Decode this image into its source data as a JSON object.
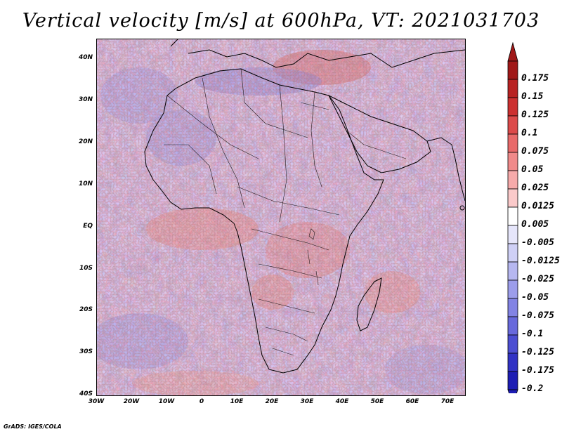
{
  "title": "Vertical velocity [m/s] at 600hPa, VT: 2021031703",
  "credit": "GrADS: IGES/COLA",
  "map": {
    "projection": "lat-lon",
    "lon_range": [
      -30,
      75
    ],
    "lat_range": [
      -40,
      45
    ],
    "lat_ticks": [
      "40N",
      "30N",
      "20N",
      "10N",
      "EQ",
      "10S",
      "20S",
      "30S",
      "40S"
    ],
    "lon_ticks": [
      "30W",
      "20W",
      "10W",
      "0",
      "10E",
      "20E",
      "30E",
      "40E",
      "50E",
      "60E",
      "70E"
    ],
    "field": "vertical velocity",
    "units": "m/s",
    "level": "600hPa"
  },
  "colorbar": {
    "labels": [
      "0.175",
      "0.15",
      "0.125",
      "0.1",
      "0.075",
      "0.05",
      "0.025",
      "0.0125",
      "0.005",
      "-0.005",
      "-0.0125",
      "-0.025",
      "-0.05",
      "-0.075",
      "-0.1",
      "-0.125",
      "-0.175",
      "-0.2"
    ],
    "colors": [
      "#a01818",
      "#b82222",
      "#cc3030",
      "#dc4a4a",
      "#e86a6a",
      "#f08a8a",
      "#f6aaaa",
      "#fbcaca",
      "#ffffff",
      "#e6e6fb",
      "#cfd0f6",
      "#b6b7f0",
      "#9c9deb",
      "#8283e4",
      "#6869dc",
      "#4c4ed2",
      "#3132c4",
      "#1d1db4"
    ]
  }
}
